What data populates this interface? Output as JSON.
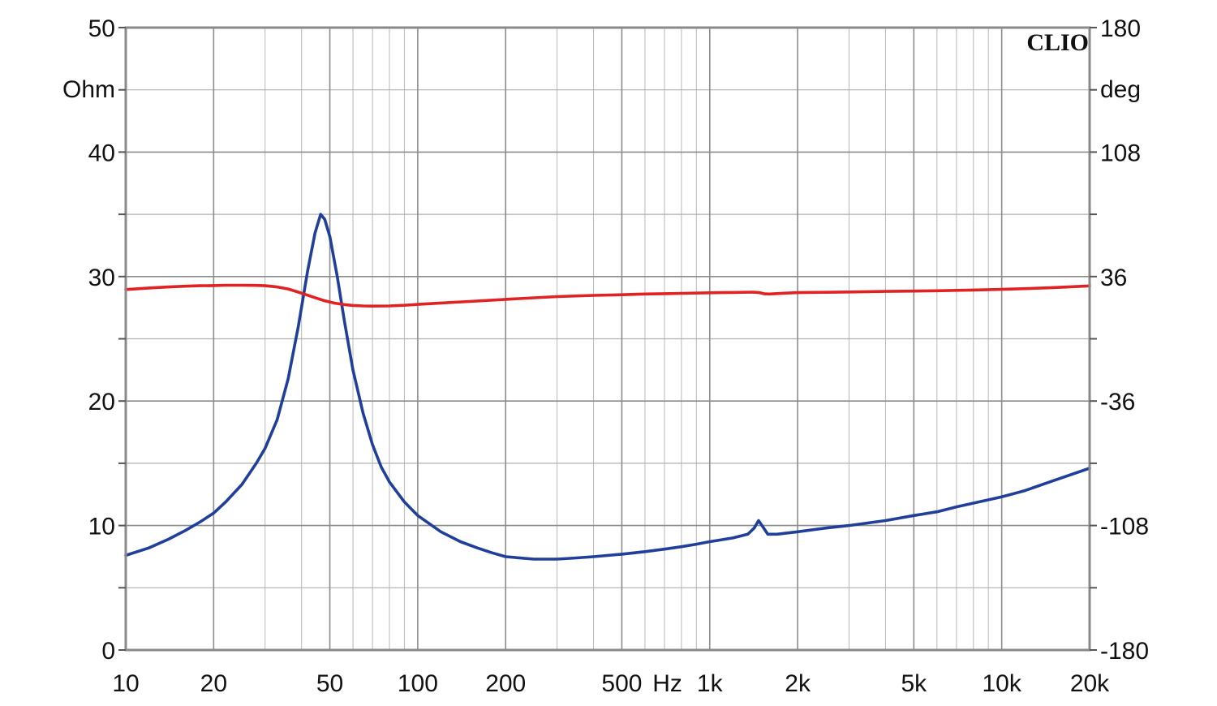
{
  "chart_data": {
    "type": "line",
    "brand": "CLIO",
    "x_scale": "log",
    "xlim": [
      10,
      20000
    ],
    "ylim_left": [
      0,
      50
    ],
    "ylim_right": [
      -180,
      180
    ],
    "grid": true,
    "left_unit": "Ohm",
    "right_unit": "deg",
    "x_ticks": [
      {
        "value": 10,
        "label": "10"
      },
      {
        "value": 20,
        "label": "20"
      },
      {
        "value": 50,
        "label": "50"
      },
      {
        "value": 100,
        "label": "100"
      },
      {
        "value": 200,
        "label": "200"
      },
      {
        "value": 500,
        "label": "500"
      },
      {
        "value": 1000,
        "label": "1k"
      },
      {
        "value": 2000,
        "label": "2k"
      },
      {
        "value": 5000,
        "label": "5k"
      },
      {
        "value": 10000,
        "label": "10k"
      },
      {
        "value": 20000,
        "label": "20k"
      }
    ],
    "x_unit_label": "Hz",
    "y_ticks_left": [
      {
        "value": 0,
        "label": "0"
      },
      {
        "value": 10,
        "label": "10"
      },
      {
        "value": 20,
        "label": "20"
      },
      {
        "value": 30,
        "label": "30"
      },
      {
        "value": 40,
        "label": "40"
      },
      {
        "value": 50,
        "label": "50"
      }
    ],
    "y_ticks_right": [
      {
        "value": -180,
        "label": "-180"
      },
      {
        "value": -108,
        "label": "-108"
      },
      {
        "value": -36,
        "label": "-36"
      },
      {
        "value": 36,
        "label": "36"
      },
      {
        "value": 108,
        "label": "108"
      },
      {
        "value": 180,
        "label": "180"
      }
    ],
    "series": [
      {
        "axis": "left",
        "color": "#1f3f9a",
        "points": [
          [
            10,
            7.6
          ],
          [
            12,
            8.2
          ],
          [
            14,
            8.9
          ],
          [
            16,
            9.6
          ],
          [
            18,
            10.3
          ],
          [
            20,
            11.0
          ],
          [
            22,
            11.9
          ],
          [
            25,
            13.3
          ],
          [
            28,
            15.0
          ],
          [
            30,
            16.2
          ],
          [
            33,
            18.5
          ],
          [
            36,
            21.8
          ],
          [
            39,
            26.0
          ],
          [
            42,
            30.5
          ],
          [
            44.5,
            33.5
          ],
          [
            46.5,
            35.0
          ],
          [
            48,
            34.6
          ],
          [
            50,
            33.2
          ],
          [
            53,
            30.0
          ],
          [
            56,
            26.5
          ],
          [
            60,
            22.5
          ],
          [
            65,
            19.0
          ],
          [
            70,
            16.5
          ],
          [
            75,
            14.7
          ],
          [
            80,
            13.5
          ],
          [
            90,
            11.9
          ],
          [
            100,
            10.8
          ],
          [
            120,
            9.5
          ],
          [
            140,
            8.7
          ],
          [
            160,
            8.2
          ],
          [
            180,
            7.8
          ],
          [
            200,
            7.5
          ],
          [
            250,
            7.3
          ],
          [
            300,
            7.3
          ],
          [
            350,
            7.4
          ],
          [
            400,
            7.5
          ],
          [
            500,
            7.7
          ],
          [
            600,
            7.9
          ],
          [
            700,
            8.1
          ],
          [
            800,
            8.3
          ],
          [
            900,
            8.5
          ],
          [
            1000,
            8.7
          ],
          [
            1200,
            9.0
          ],
          [
            1350,
            9.3
          ],
          [
            1420,
            9.8
          ],
          [
            1470,
            10.4
          ],
          [
            1520,
            9.9
          ],
          [
            1580,
            9.3
          ],
          [
            1700,
            9.3
          ],
          [
            2000,
            9.5
          ],
          [
            2500,
            9.8
          ],
          [
            3000,
            10.0
          ],
          [
            4000,
            10.4
          ],
          [
            5000,
            10.8
          ],
          [
            6000,
            11.1
          ],
          [
            7000,
            11.5
          ],
          [
            8000,
            11.8
          ],
          [
            10000,
            12.3
          ],
          [
            12000,
            12.8
          ],
          [
            15000,
            13.6
          ],
          [
            20000,
            14.6
          ]
        ]
      },
      {
        "axis": "right",
        "color": "#e02222",
        "points": [
          [
            10,
            28.5
          ],
          [
            12,
            29.4
          ],
          [
            14,
            30.0
          ],
          [
            16,
            30.4
          ],
          [
            18,
            30.7
          ],
          [
            20,
            30.8
          ],
          [
            22,
            31.0
          ],
          [
            25,
            31.0
          ],
          [
            28,
            30.9
          ],
          [
            30,
            30.7
          ],
          [
            33,
            30.0
          ],
          [
            36,
            28.8
          ],
          [
            39,
            27.0
          ],
          [
            42,
            25.2
          ],
          [
            45,
            23.5
          ],
          [
            48,
            22.0
          ],
          [
            52,
            20.6
          ],
          [
            56,
            19.8
          ],
          [
            60,
            19.3
          ],
          [
            65,
            19.0
          ],
          [
            70,
            18.9
          ],
          [
            80,
            19.0
          ],
          [
            90,
            19.4
          ],
          [
            100,
            19.9
          ],
          [
            120,
            20.7
          ],
          [
            150,
            21.6
          ],
          [
            200,
            22.8
          ],
          [
            250,
            23.7
          ],
          [
            300,
            24.4
          ],
          [
            350,
            24.8
          ],
          [
            400,
            25.1
          ],
          [
            500,
            25.5
          ],
          [
            600,
            25.9
          ],
          [
            700,
            26.1
          ],
          [
            800,
            26.3
          ],
          [
            1000,
            26.6
          ],
          [
            1200,
            26.8
          ],
          [
            1400,
            27.0
          ],
          [
            1480,
            26.7
          ],
          [
            1540,
            26.0
          ],
          [
            1600,
            25.9
          ],
          [
            1800,
            26.4
          ],
          [
            2000,
            26.7
          ],
          [
            2500,
            26.9
          ],
          [
            3000,
            27.1
          ],
          [
            4000,
            27.4
          ],
          [
            5000,
            27.6
          ],
          [
            6000,
            27.8
          ],
          [
            7000,
            28.0
          ],
          [
            8000,
            28.2
          ],
          [
            10000,
            28.6
          ],
          [
            12000,
            29.0
          ],
          [
            15000,
            29.6
          ],
          [
            20000,
            30.6
          ]
        ]
      }
    ]
  }
}
